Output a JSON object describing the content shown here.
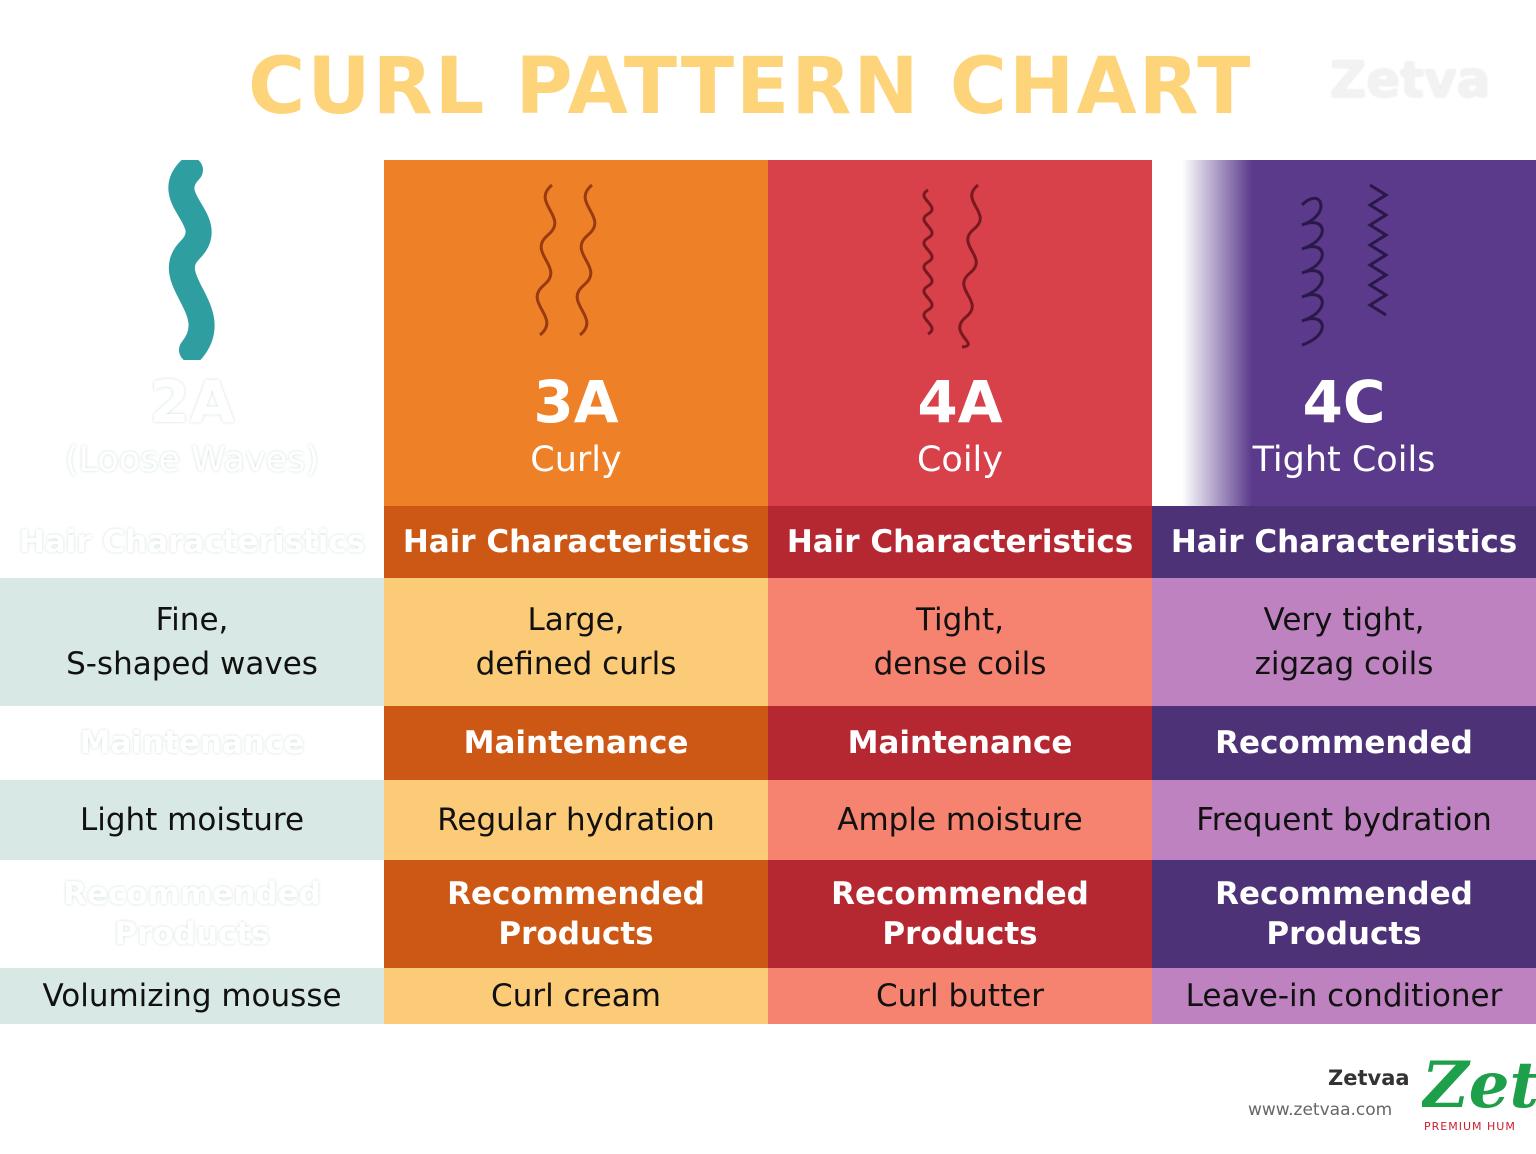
{
  "title": "CURL PATTERN CHART",
  "watermark": "Zetva",
  "columns": [
    {
      "code": "2A",
      "name": "(Loose Waves)",
      "header_characteristics": "Hair Characteristics",
      "characteristics": [
        "Fine,",
        "S-shaped waves"
      ],
      "header_maintenance": "Maintenance",
      "maintenance": "Light moisture",
      "header_products": [
        "Recommended",
        "Products"
      ],
      "product": "Volumizing mousse",
      "icon": "loose-wave-icon",
      "color": "#2e9ea0"
    },
    {
      "code": "3A",
      "name": "Curly",
      "header_characteristics": "Hair Characteristics",
      "characteristics": [
        "Large,",
        "defined curls"
      ],
      "header_maintenance": "Maintenance",
      "maintenance": "Regular hydration",
      "header_products": [
        "Recommended",
        "Products"
      ],
      "product": "Curl cream",
      "icon": "curly-strand-icon",
      "color": "#ee8128"
    },
    {
      "code": "4A",
      "name": "Coily",
      "header_characteristics": "Hair Characteristics",
      "characteristics": [
        "Tight,",
        "dense coils"
      ],
      "header_maintenance": "Maintenance",
      "maintenance": "Ample moisture",
      "header_products": [
        "Recommended",
        "Products"
      ],
      "product": "Curl butter",
      "icon": "coily-strand-icon",
      "color": "#d8404a"
    },
    {
      "code": "4C",
      "name": "Tight Coils",
      "header_characteristics": "Hair Characteristics",
      "characteristics": [
        "Very tight,",
        "zigzag coils"
      ],
      "header_maintenance": "Recommended",
      "maintenance": "Frequent bydration",
      "header_products": [
        "Recommended",
        "Products"
      ],
      "product": "Leave-in conditioner",
      "icon": "tight-coil-strand-icon",
      "color": "#5b3a8c"
    }
  ],
  "footer": {
    "brand": "Zetvaa",
    "url": "www.zetvaa.com",
    "logo_text": "Zeti",
    "logo_subtext": "PREMIUM HUM"
  }
}
